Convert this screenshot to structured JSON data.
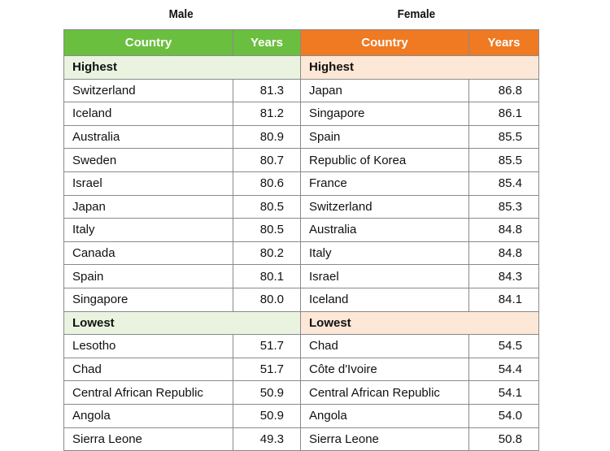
{
  "titles": {
    "male": "Male",
    "female": "Female"
  },
  "headers": {
    "country": "Country",
    "years": "Years"
  },
  "sections": {
    "highest": "Highest",
    "lowest": "Lowest"
  },
  "highest": [
    {
      "male_country": "Switzerland",
      "male_years": "81.3",
      "female_country": "Japan",
      "female_years": "86.8"
    },
    {
      "male_country": "Iceland",
      "male_years": "81.2",
      "female_country": "Singapore",
      "female_years": "86.1"
    },
    {
      "male_country": "Australia",
      "male_years": "80.9",
      "female_country": "Spain",
      "female_years": "85.5"
    },
    {
      "male_country": "Sweden",
      "male_years": "80.7",
      "female_country": "Republic of Korea",
      "female_years": "85.5"
    },
    {
      "male_country": "Israel",
      "male_years": "80.6",
      "female_country": "France",
      "female_years": "85.4"
    },
    {
      "male_country": "Japan",
      "male_years": "80.5",
      "female_country": "Switzerland",
      "female_years": "85.3"
    },
    {
      "male_country": "Italy",
      "male_years": "80.5",
      "female_country": "Australia",
      "female_years": "84.8"
    },
    {
      "male_country": "Canada",
      "male_years": "80.2",
      "female_country": "Italy",
      "female_years": "84.8"
    },
    {
      "male_country": "Spain",
      "male_years": "80.1",
      "female_country": "Israel",
      "female_years": "84.3"
    },
    {
      "male_country": "Singapore",
      "male_years": "80.0",
      "female_country": "Iceland",
      "female_years": "84.1"
    }
  ],
  "lowest": [
    {
      "male_country": "Lesotho",
      "male_years": "51.7",
      "female_country": "Chad",
      "female_years": "54.5"
    },
    {
      "male_country": "Chad",
      "male_years": "51.7",
      "female_country": "Côte d'Ivoire",
      "female_years": "54.4"
    },
    {
      "male_country": "Central African Republic",
      "male_years": "50.9",
      "female_country": "Central African Republic",
      "female_years": "54.1"
    },
    {
      "male_country": "Angola",
      "male_years": "50.9",
      "female_country": "Angola",
      "female_years": "54.0"
    },
    {
      "male_country": "Sierra Leone",
      "male_years": "49.3",
      "female_country": "Sierra Leone",
      "female_years": "50.8"
    }
  ],
  "colors": {
    "male_header": "#6bbf3f",
    "female_header": "#ef7a22",
    "male_section": "#e9f3e0",
    "female_section": "#fde7d6"
  }
}
